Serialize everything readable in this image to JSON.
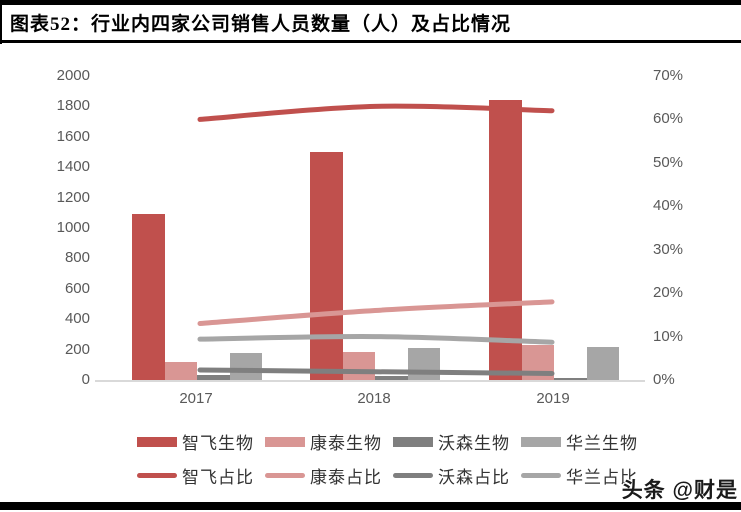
{
  "header": {
    "title": "图表52：行业内四家公司销售人员数量（人）及占比情况"
  },
  "watermark": {
    "text": "头条 @财是"
  },
  "chart_data": {
    "type": "bar",
    "subtype": "grouped bars on left axis + smoothed lines on right percent axis",
    "title": "行业内四家公司销售人员数量（人）及占比情况",
    "categories": [
      "2017",
      "2018",
      "2019"
    ],
    "bar_series": [
      {
        "name": "智飞生物",
        "color": "#C0504D",
        "values": [
          1090,
          1500,
          1840
        ]
      },
      {
        "name": "康泰生物",
        "color": "#D99694",
        "values": [
          120,
          185,
          230
        ]
      },
      {
        "name": "沃森生物",
        "color": "#7F7F7F",
        "values": [
          35,
          25,
          15
        ]
      },
      {
        "name": "华兰生物",
        "color": "#A6A6A6",
        "values": [
          180,
          210,
          215
        ]
      }
    ],
    "line_series": [
      {
        "name": "智飞占比",
        "color": "#C0504D",
        "unit": "%",
        "values": [
          60,
          63,
          62
        ]
      },
      {
        "name": "康泰占比",
        "color": "#D99694",
        "unit": "%",
        "values": [
          13,
          16,
          18
        ]
      },
      {
        "name": "沃森占比",
        "color": "#7F7F7F",
        "unit": "%",
        "values": [
          2.3,
          1.9,
          1.5
        ]
      },
      {
        "name": "华兰占比",
        "color": "#A6A6A6",
        "unit": "%",
        "values": [
          9.4,
          10,
          8.7
        ]
      }
    ],
    "left_axis": {
      "min": 0,
      "max": 2000,
      "step": 200,
      "ticks": [
        "2000",
        "1800",
        "1600",
        "1400",
        "1200",
        "1000",
        "800",
        "600",
        "400",
        "200",
        "0"
      ]
    },
    "right_axis": {
      "min": 0,
      "max": 70,
      "step": 10,
      "ticks": [
        "70%",
        "60%",
        "50%",
        "40%",
        "30%",
        "20%",
        "10%",
        "0%"
      ]
    },
    "grid": "off",
    "legend_position": "bottom, two rows (bars row then lines row)",
    "axis_text_color": "#595959",
    "axis_line_color": "#D9D9D9"
  }
}
